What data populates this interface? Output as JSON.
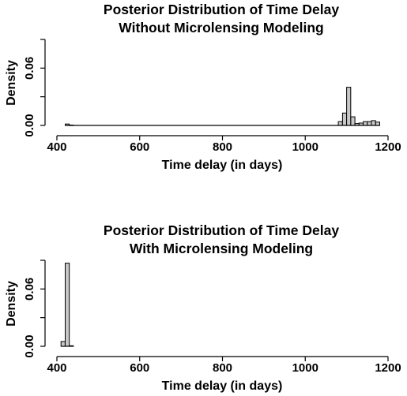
{
  "chart_data": [
    {
      "type": "bar",
      "title": [
        "Posterior Distribution of Time Delay",
        "Without Microlensing Modeling"
      ],
      "xlabel": "Time delay (in days)",
      "ylabel": "Density",
      "xlim": [
        400,
        1200
      ],
      "ylim": [
        0,
        0.09
      ],
      "xticks": [
        "400",
        "600",
        "800",
        "1000",
        "1200"
      ],
      "yticks": [
        "0.00",
        "0.06"
      ],
      "grid": false,
      "bin_width": 10,
      "bins": [
        {
          "start": 420,
          "value": 0.0015
        },
        {
          "start": 430,
          "value": 0.0003
        },
        {
          "start": 1080,
          "value": 0.004
        },
        {
          "start": 1090,
          "value": 0.013
        },
        {
          "start": 1100,
          "value": 0.04
        },
        {
          "start": 1110,
          "value": 0.009
        },
        {
          "start": 1120,
          "value": 0.002
        },
        {
          "start": 1130,
          "value": 0.0025
        },
        {
          "start": 1140,
          "value": 0.004
        },
        {
          "start": 1150,
          "value": 0.004
        },
        {
          "start": 1160,
          "value": 0.005
        },
        {
          "start": 1170,
          "value": 0.0035
        }
      ]
    },
    {
      "type": "bar",
      "title": [
        "Posterior Distribution of Time Delay",
        "With Microlensing Modeling"
      ],
      "xlabel": "Time delay (in days)",
      "ylabel": "Density",
      "xlim": [
        400,
        1200
      ],
      "ylim": [
        0,
        0.09
      ],
      "xticks": [
        "400",
        "600",
        "800",
        "1000",
        "1200"
      ],
      "yticks": [
        "0.00",
        "0.06"
      ],
      "grid": false,
      "bin_width": 10,
      "bins": [
        {
          "start": 410,
          "value": 0.005
        },
        {
          "start": 420,
          "value": 0.087
        },
        {
          "start": 430,
          "value": 0.0006
        }
      ]
    }
  ]
}
